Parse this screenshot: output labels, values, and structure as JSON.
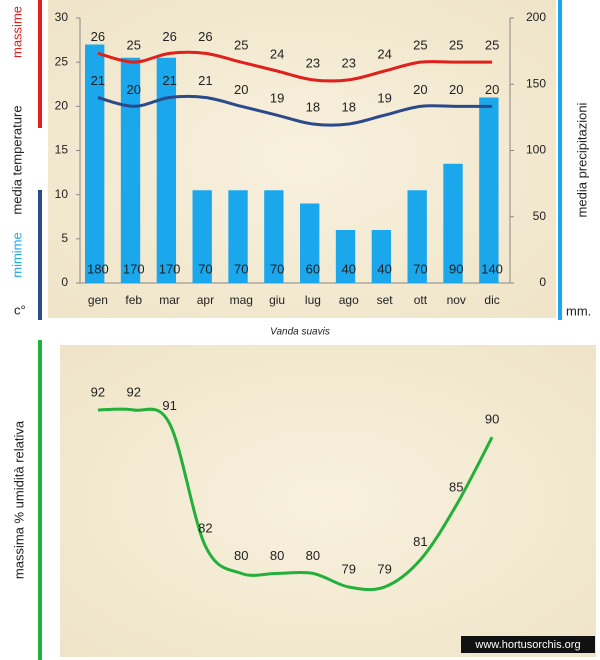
{
  "chart_data": [
    {
      "type": "combo",
      "caption": "Vanda suavis",
      "ylabel": "media  temperature",
      "ylabel_high": "massime",
      "ylabel_low": "mimime",
      "yunit": "c°",
      "y2label": "media  precipitazioni",
      "y2unit": "mm.",
      "categories": [
        "gen",
        "feb",
        "mar",
        "apr",
        "mag",
        "giu",
        "lug",
        "ago",
        "set",
        "ott",
        "nov",
        "dic"
      ],
      "ylim": [
        0,
        30
      ],
      "yticks": [
        0,
        5,
        10,
        15,
        20,
        25,
        30
      ],
      "y2lim": [
        0,
        200
      ],
      "y2ticks": [
        0,
        50,
        100,
        150,
        200
      ],
      "series": [
        {
          "kind": "bar",
          "axis": "y2",
          "color": "#1aa7ec",
          "values": [
            180,
            170,
            170,
            70,
            70,
            70,
            60,
            40,
            40,
            70,
            90,
            140
          ]
        },
        {
          "kind": "line",
          "name": "massime",
          "color": "#e0201b",
          "values": [
            26,
            25,
            26,
            26,
            25,
            24,
            23,
            23,
            24,
            25,
            25,
            25
          ]
        },
        {
          "kind": "line",
          "name": "mimime",
          "color": "#2b4a8c",
          "values": [
            21,
            20,
            21,
            21,
            20,
            19,
            18,
            18,
            19,
            20,
            20,
            20
          ]
        }
      ]
    },
    {
      "type": "line",
      "ylabel": "massima % umidità relativa",
      "color": "#22b03a",
      "values": [
        92,
        92,
        91,
        82,
        80,
        80,
        80,
        79,
        79,
        81,
        85,
        90
      ],
      "watermark": "www.hortusorchis.org"
    }
  ]
}
